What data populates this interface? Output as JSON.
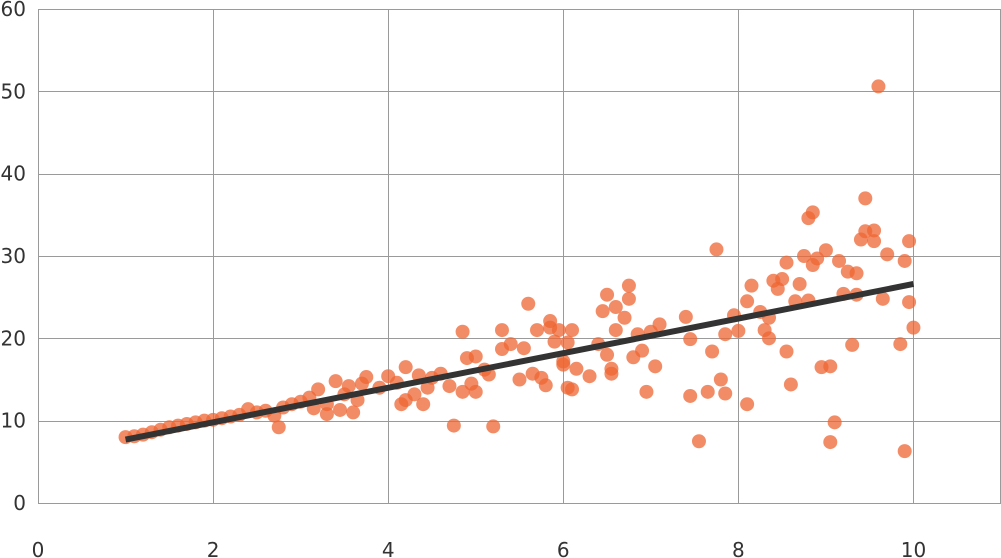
{
  "chart_data": {
    "type": "scatter",
    "title": "",
    "xlabel": "",
    "ylabel": "",
    "xlim": [
      0,
      11
    ],
    "ylim": [
      0,
      60
    ],
    "x_ticks": [
      0,
      2,
      4,
      6,
      8,
      10
    ],
    "y_ticks": [
      0,
      10,
      20,
      30,
      40,
      50,
      60
    ],
    "x_tick_labels": [
      "0",
      "2",
      "4",
      "6",
      "8",
      "10"
    ],
    "y_tick_labels": [
      "0",
      "10",
      "20",
      "30",
      "40",
      "50",
      "60"
    ],
    "grid": true,
    "legend": "none",
    "point_color": "#ee6633",
    "line_color": "#333333",
    "series": [
      {
        "type": "scatter",
        "points": [
          [
            1.0,
            8.0
          ],
          [
            1.1,
            8.1
          ],
          [
            1.2,
            8.3
          ],
          [
            1.3,
            8.6
          ],
          [
            1.4,
            8.9
          ],
          [
            1.5,
            9.2
          ],
          [
            1.6,
            9.4
          ],
          [
            1.7,
            9.6
          ],
          [
            1.8,
            9.8
          ],
          [
            1.9,
            10.0
          ],
          [
            2.0,
            10.1
          ],
          [
            2.1,
            10.3
          ],
          [
            2.2,
            10.5
          ],
          [
            2.3,
            10.7
          ],
          [
            2.4,
            11.4
          ],
          [
            2.5,
            11.0
          ],
          [
            2.6,
            11.2
          ],
          [
            2.7,
            10.6
          ],
          [
            2.75,
            9.2
          ],
          [
            2.8,
            11.6
          ],
          [
            2.9,
            12.0
          ],
          [
            3.0,
            12.3
          ],
          [
            3.1,
            12.8
          ],
          [
            3.15,
            11.5
          ],
          [
            3.2,
            13.8
          ],
          [
            3.3,
            12.0
          ],
          [
            3.3,
            10.8
          ],
          [
            3.4,
            14.8
          ],
          [
            3.45,
            11.3
          ],
          [
            3.5,
            13.2
          ],
          [
            3.55,
            14.2
          ],
          [
            3.6,
            11.0
          ],
          [
            3.65,
            12.5
          ],
          [
            3.7,
            14.5
          ],
          [
            3.75,
            15.3
          ],
          [
            3.9,
            14.0
          ],
          [
            4.0,
            15.4
          ],
          [
            4.1,
            14.6
          ],
          [
            4.15,
            12.0
          ],
          [
            4.2,
            12.5
          ],
          [
            4.2,
            16.5
          ],
          [
            4.3,
            13.2
          ],
          [
            4.35,
            15.5
          ],
          [
            4.4,
            12.0
          ],
          [
            4.45,
            14.0
          ],
          [
            4.5,
            15.2
          ],
          [
            4.6,
            15.7
          ],
          [
            4.7,
            14.2
          ],
          [
            4.75,
            9.4
          ],
          [
            4.85,
            13.5
          ],
          [
            4.85,
            20.8
          ],
          [
            4.9,
            17.6
          ],
          [
            4.95,
            14.5
          ],
          [
            5.0,
            17.8
          ],
          [
            5.0,
            13.5
          ],
          [
            5.1,
            16.2
          ],
          [
            5.15,
            15.6
          ],
          [
            5.2,
            9.3
          ],
          [
            5.3,
            21.0
          ],
          [
            5.3,
            18.7
          ],
          [
            5.4,
            19.3
          ],
          [
            5.5,
            15.0
          ],
          [
            5.55,
            18.8
          ],
          [
            5.6,
            24.2
          ],
          [
            5.65,
            15.7
          ],
          [
            5.7,
            21.0
          ],
          [
            5.75,
            15.2
          ],
          [
            5.8,
            14.3
          ],
          [
            5.85,
            22.1
          ],
          [
            5.85,
            21.3
          ],
          [
            5.9,
            19.6
          ],
          [
            5.95,
            21.0
          ],
          [
            6.0,
            16.8
          ],
          [
            6.0,
            17.2
          ],
          [
            6.05,
            19.5
          ],
          [
            6.05,
            14.0
          ],
          [
            6.1,
            13.8
          ],
          [
            6.1,
            21.0
          ],
          [
            6.15,
            16.3
          ],
          [
            6.3,
            15.4
          ],
          [
            6.4,
            19.3
          ],
          [
            6.45,
            23.3
          ],
          [
            6.5,
            25.3
          ],
          [
            6.5,
            18.0
          ],
          [
            6.55,
            16.3
          ],
          [
            6.55,
            15.7
          ],
          [
            6.6,
            23.8
          ],
          [
            6.6,
            21.0
          ],
          [
            6.7,
            22.5
          ],
          [
            6.75,
            26.4
          ],
          [
            6.75,
            24.8
          ],
          [
            6.8,
            17.7
          ],
          [
            6.85,
            20.5
          ],
          [
            6.9,
            18.5
          ],
          [
            6.95,
            13.5
          ],
          [
            7.0,
            20.8
          ],
          [
            7.05,
            16.6
          ],
          [
            7.1,
            21.7
          ],
          [
            7.4,
            22.6
          ],
          [
            7.45,
            19.9
          ],
          [
            7.45,
            13.0
          ],
          [
            7.55,
            7.5
          ],
          [
            7.65,
            13.5
          ],
          [
            7.7,
            18.4
          ],
          [
            7.75,
            30.8
          ],
          [
            7.8,
            15.0
          ],
          [
            7.85,
            13.3
          ],
          [
            7.85,
            20.5
          ],
          [
            7.95,
            22.8
          ],
          [
            8.0,
            20.9
          ],
          [
            8.1,
            12.0
          ],
          [
            8.1,
            24.5
          ],
          [
            8.15,
            26.4
          ],
          [
            8.25,
            23.2
          ],
          [
            8.3,
            21.0
          ],
          [
            8.35,
            22.5
          ],
          [
            8.35,
            20.0
          ],
          [
            8.4,
            27.0
          ],
          [
            8.45,
            26.0
          ],
          [
            8.5,
            27.2
          ],
          [
            8.55,
            29.2
          ],
          [
            8.55,
            18.4
          ],
          [
            8.6,
            14.4
          ],
          [
            8.65,
            24.5
          ],
          [
            8.7,
            26.6
          ],
          [
            8.75,
            30.0
          ],
          [
            8.8,
            34.6
          ],
          [
            8.8,
            24.6
          ],
          [
            8.85,
            35.3
          ],
          [
            8.85,
            28.9
          ],
          [
            8.9,
            29.7
          ],
          [
            8.95,
            16.5
          ],
          [
            9.0,
            30.7
          ],
          [
            9.05,
            16.6
          ],
          [
            9.05,
            7.4
          ],
          [
            9.1,
            9.8
          ],
          [
            9.15,
            29.4
          ],
          [
            9.2,
            25.4
          ],
          [
            9.25,
            28.1
          ],
          [
            9.3,
            19.2
          ],
          [
            9.35,
            27.9
          ],
          [
            9.35,
            25.3
          ],
          [
            9.4,
            32.0
          ],
          [
            9.45,
            37.0
          ],
          [
            9.45,
            33.0
          ],
          [
            9.55,
            33.1
          ],
          [
            9.55,
            31.8
          ],
          [
            9.6,
            50.6
          ],
          [
            9.65,
            24.8
          ],
          [
            9.7,
            30.2
          ],
          [
            9.85,
            19.3
          ],
          [
            9.9,
            29.4
          ],
          [
            9.9,
            6.3
          ],
          [
            9.95,
            24.4
          ],
          [
            9.95,
            31.8
          ],
          [
            10.0,
            21.3
          ]
        ]
      },
      {
        "type": "line",
        "points": [
          [
            1.0,
            7.7
          ],
          [
            10.0,
            26.6
          ]
        ]
      }
    ]
  }
}
